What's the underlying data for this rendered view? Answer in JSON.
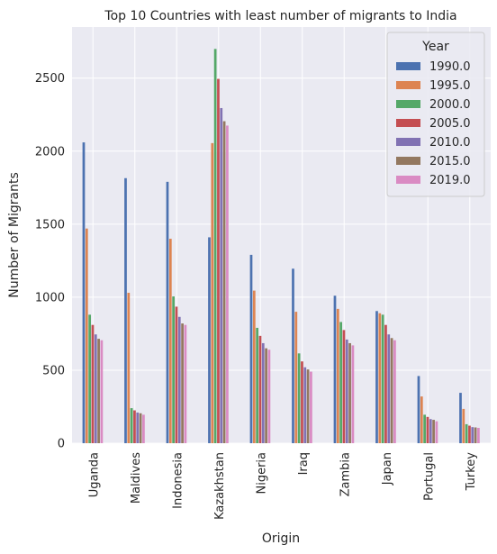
{
  "chart_data": {
    "type": "bar",
    "title": "Top 10 Countries with least number of migrants to India",
    "xlabel": "Origin",
    "ylabel": "Number of Migrants",
    "ylim": [
      0,
      2850
    ],
    "yticks": [
      0,
      500,
      1000,
      1500,
      2000,
      2500
    ],
    "grid": true,
    "legend": {
      "title": "Year",
      "placement": "top-right"
    },
    "categories": [
      "Uganda",
      "Maldives",
      "Indonesia",
      "Kazakhstan",
      "Nigeria",
      "Iraq",
      "Zambia",
      "Japan",
      "Portugal",
      "Turkey"
    ],
    "series": [
      {
        "name": "1990.0",
        "color": "#4c72b0",
        "values": [
          2060,
          1815,
          1790,
          1410,
          1290,
          1195,
          1010,
          905,
          460,
          345
        ]
      },
      {
        "name": "1995.0",
        "color": "#dd8452",
        "values": [
          1470,
          1030,
          1400,
          2055,
          1045,
          900,
          920,
          890,
          320,
          235
        ]
      },
      {
        "name": "2000.0",
        "color": "#55a868",
        "values": [
          880,
          240,
          1005,
          2700,
          790,
          615,
          830,
          880,
          195,
          130
        ]
      },
      {
        "name": "2005.0",
        "color": "#c44e52",
        "values": [
          810,
          225,
          935,
          2495,
          735,
          560,
          775,
          810,
          180,
          120
        ]
      },
      {
        "name": "2010.0",
        "color": "#8172b3",
        "values": [
          745,
          210,
          865,
          2295,
          685,
          520,
          710,
          745,
          165,
          110
        ]
      },
      {
        "name": "2015.0",
        "color": "#937860",
        "values": [
          715,
          205,
          820,
          2205,
          650,
          505,
          685,
          720,
          160,
          108
        ]
      },
      {
        "name": "2019.0",
        "color": "#da8bc3",
        "values": [
          705,
          195,
          810,
          2175,
          640,
          490,
          670,
          705,
          150,
          105
        ]
      }
    ]
  }
}
